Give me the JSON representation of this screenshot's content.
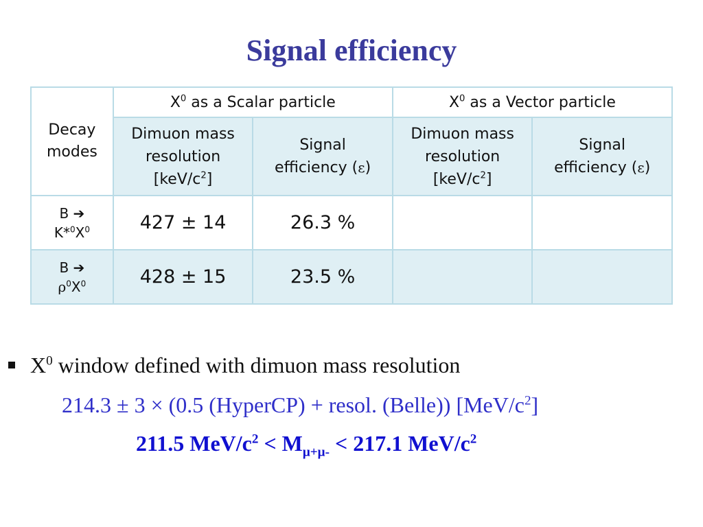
{
  "title": "Signal efficiency",
  "table": {
    "decay_modes_header": [
      "Decay",
      "modes"
    ],
    "scalar_header": {
      "x": "X",
      "sup": "0",
      "rest": " as a Scalar particle"
    },
    "vector_header": {
      "x": "X",
      "sup": "0",
      "rest": " as a Vector particle"
    },
    "dimuon_header": {
      "line1": "Dimuon mass",
      "line2": "resolution",
      "line3_pre": "[keV/c",
      "line3_sup": "2",
      "line3_post": "]"
    },
    "signal_header": {
      "line1": "Signal",
      "line2_pre": "efficiency (",
      "line2_sym": "ε",
      "line2_post": ")"
    },
    "rows": [
      {
        "mode_line1": "B ➔",
        "mode_pre": "K*",
        "mode_sup1": "0",
        "mode_x": "X",
        "mode_sup2": "0",
        "resolution": "427 ± 14",
        "efficiency": "26.3 %",
        "vec_resolution": "",
        "vec_efficiency": ""
      },
      {
        "mode_line1": "B ➔",
        "mode_pre": "ρ",
        "mode_sup1": "0",
        "mode_x": "X",
        "mode_sup2": "0",
        "resolution": "428 ± 15",
        "efficiency": "23.5 %",
        "vec_resolution": "",
        "vec_efficiency": ""
      }
    ]
  },
  "bullet": {
    "x": "X",
    "sup": "0",
    "rest": " window defined with dimuon mass resolution"
  },
  "formula1": {
    "text": "214.3 ± 3 × (0.5 (HyperCP) + resol. (Belle)) [MeV/c",
    "sup": "2",
    "post": "]"
  },
  "formula2": {
    "a": "211.5 MeV/c",
    "a_sup": "2",
    "b": " < M",
    "b_sub": "μ+μ-",
    "c": " < 217.1 MeV/c",
    "c_sup": "2"
  },
  "colors": {
    "title": "#3b3b9c",
    "formula1": "#2f2fc9",
    "formula2": "#1010d0",
    "table_shade": "#dfeff4",
    "table_border": "#b9dbe6"
  }
}
